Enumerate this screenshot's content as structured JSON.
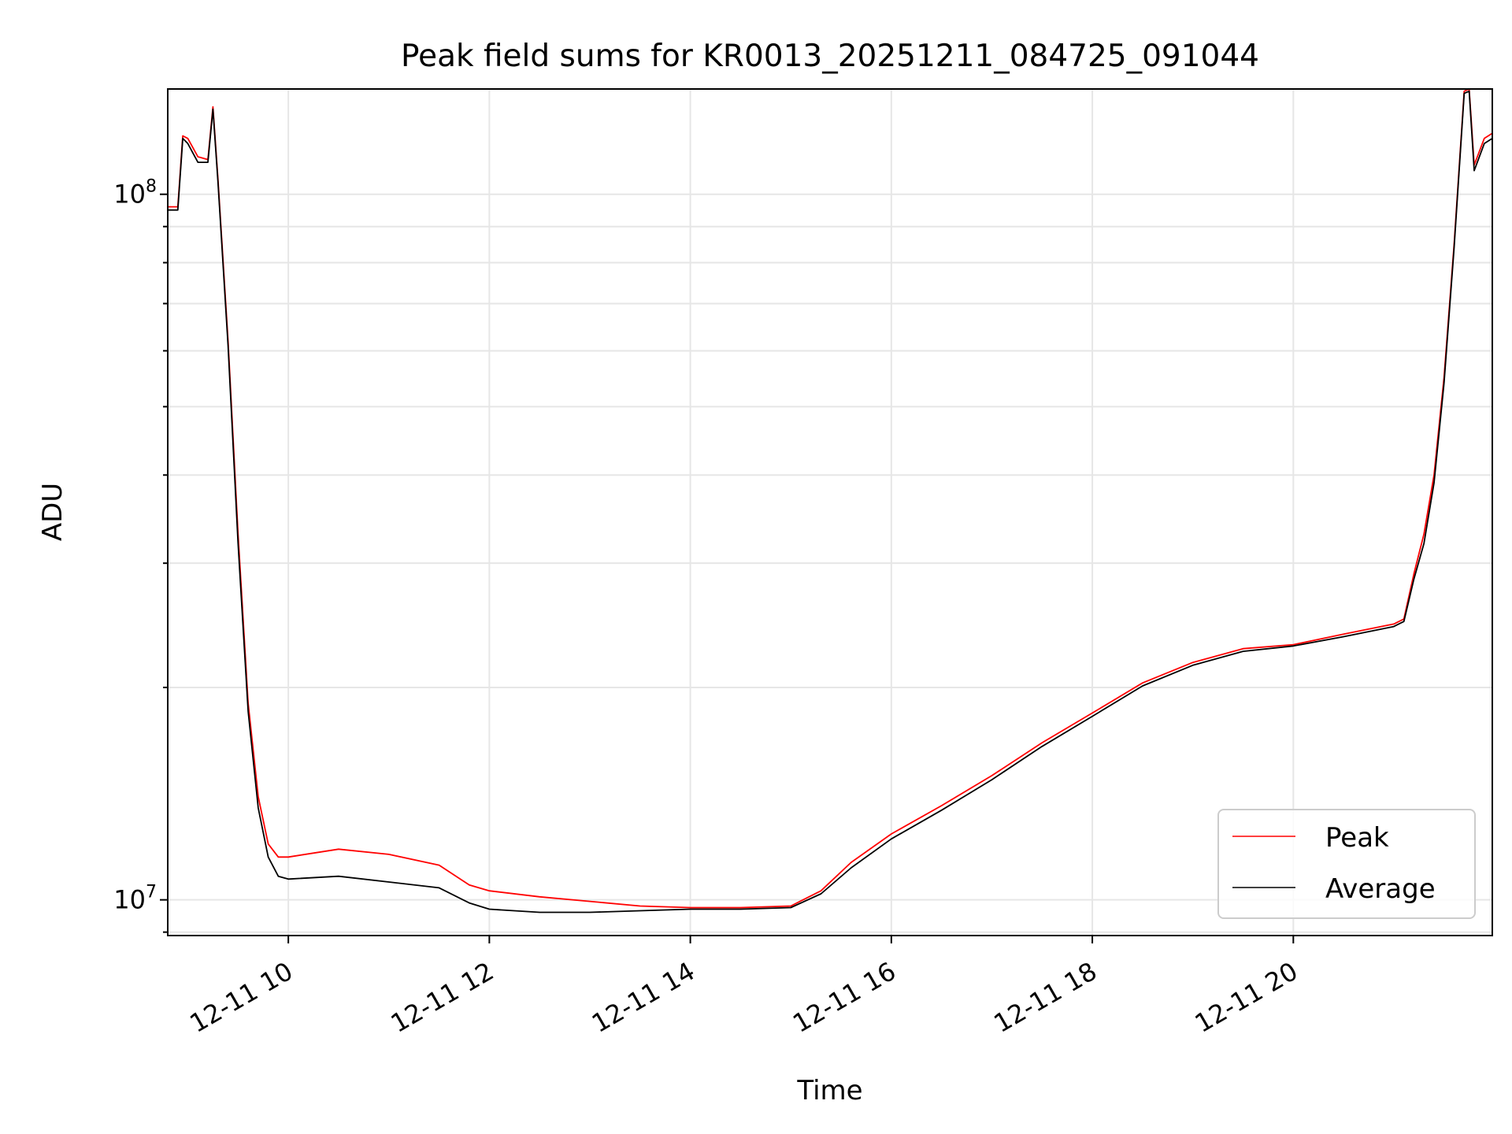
{
  "chart_data": {
    "type": "line",
    "title": "Peak field sums for KR0013_20251211_084725_091044",
    "xlabel": "Time",
    "ylabel": "ADU",
    "x_unit": "hour",
    "xlim": [
      8.8,
      21.98
    ],
    "ylim": [
      8900000,
      141000000
    ],
    "yscale": "log",
    "grid": true,
    "legend_position": "lower right",
    "x_ticks": [
      {
        "x": 10,
        "label": "12-11 10"
      },
      {
        "x": 12,
        "label": "12-11 12"
      },
      {
        "x": 14,
        "label": "12-11 14"
      },
      {
        "x": 16,
        "label": "12-11 16"
      },
      {
        "x": 18,
        "label": "12-11 18"
      },
      {
        "x": 20,
        "label": "12-11 20"
      }
    ],
    "y_ticks": [
      {
        "y": 10000000,
        "label_base": "10",
        "label_exp": "7"
      },
      {
        "y": 100000000,
        "label_base": "10",
        "label_exp": "8"
      }
    ],
    "series": [
      {
        "name": "Peak",
        "color": "#ff0000",
        "points": [
          [
            8.8,
            96000000
          ],
          [
            8.9,
            96000000
          ],
          [
            8.95,
            121000000
          ],
          [
            9.0,
            120000000
          ],
          [
            9.1,
            113000000
          ],
          [
            9.2,
            112000000
          ],
          [
            9.25,
            133000000
          ],
          [
            9.3,
            105000000
          ],
          [
            9.4,
            62000000
          ],
          [
            9.5,
            33000000
          ],
          [
            9.6,
            19000000
          ],
          [
            9.7,
            14000000
          ],
          [
            9.8,
            12000000
          ],
          [
            9.9,
            11500000
          ],
          [
            10.0,
            11500000
          ],
          [
            10.5,
            11800000
          ],
          [
            11.0,
            11600000
          ],
          [
            11.5,
            11200000
          ],
          [
            11.8,
            10500000
          ],
          [
            12.0,
            10300000
          ],
          [
            12.5,
            10100000
          ],
          [
            13.0,
            9950000
          ],
          [
            13.5,
            9800000
          ],
          [
            14.0,
            9750000
          ],
          [
            14.5,
            9750000
          ],
          [
            15.0,
            9800000
          ],
          [
            15.3,
            10300000
          ],
          [
            15.6,
            11300000
          ],
          [
            16.0,
            12400000
          ],
          [
            16.5,
            13600000
          ],
          [
            17.0,
            15000000
          ],
          [
            17.5,
            16700000
          ],
          [
            18.0,
            18400000
          ],
          [
            18.5,
            20300000
          ],
          [
            19.0,
            21700000
          ],
          [
            19.5,
            22700000
          ],
          [
            20.0,
            23000000
          ],
          [
            20.5,
            23800000
          ],
          [
            21.0,
            24600000
          ],
          [
            21.1,
            25000000
          ],
          [
            21.2,
            29000000
          ],
          [
            21.3,
            33000000
          ],
          [
            21.4,
            40000000
          ],
          [
            21.5,
            55000000
          ],
          [
            21.6,
            85000000
          ],
          [
            21.7,
            140000000
          ],
          [
            21.75,
            141000000
          ],
          [
            21.8,
            110000000
          ],
          [
            21.9,
            120000000
          ],
          [
            21.98,
            122000000
          ]
        ]
      },
      {
        "name": "Average",
        "color": "#000000",
        "points": [
          [
            8.8,
            95000000
          ],
          [
            8.9,
            95000000
          ],
          [
            8.95,
            120000000
          ],
          [
            9.0,
            118000000
          ],
          [
            9.1,
            111000000
          ],
          [
            9.2,
            111000000
          ],
          [
            9.25,
            132000000
          ],
          [
            9.3,
            104000000
          ],
          [
            9.4,
            61000000
          ],
          [
            9.5,
            32000000
          ],
          [
            9.6,
            18500000
          ],
          [
            9.7,
            13500000
          ],
          [
            9.8,
            11500000
          ],
          [
            9.9,
            10800000
          ],
          [
            10.0,
            10700000
          ],
          [
            10.5,
            10800000
          ],
          [
            11.0,
            10600000
          ],
          [
            11.5,
            10400000
          ],
          [
            11.8,
            9900000
          ],
          [
            12.0,
            9700000
          ],
          [
            12.5,
            9600000
          ],
          [
            13.0,
            9600000
          ],
          [
            13.5,
            9650000
          ],
          [
            14.0,
            9700000
          ],
          [
            14.5,
            9700000
          ],
          [
            15.0,
            9750000
          ],
          [
            15.3,
            10200000
          ],
          [
            15.6,
            11100000
          ],
          [
            16.0,
            12200000
          ],
          [
            16.5,
            13400000
          ],
          [
            17.0,
            14800000
          ],
          [
            17.5,
            16500000
          ],
          [
            18.0,
            18200000
          ],
          [
            18.5,
            20100000
          ],
          [
            19.0,
            21500000
          ],
          [
            19.5,
            22500000
          ],
          [
            20.0,
            22900000
          ],
          [
            20.5,
            23600000
          ],
          [
            21.0,
            24400000
          ],
          [
            21.1,
            24800000
          ],
          [
            21.2,
            28500000
          ],
          [
            21.3,
            32000000
          ],
          [
            21.4,
            39000000
          ],
          [
            21.5,
            54000000
          ],
          [
            21.6,
            84000000
          ],
          [
            21.7,
            139000000
          ],
          [
            21.75,
            140000000
          ],
          [
            21.8,
            108000000
          ],
          [
            21.9,
            118000000
          ],
          [
            21.98,
            120000000
          ]
        ]
      }
    ]
  }
}
